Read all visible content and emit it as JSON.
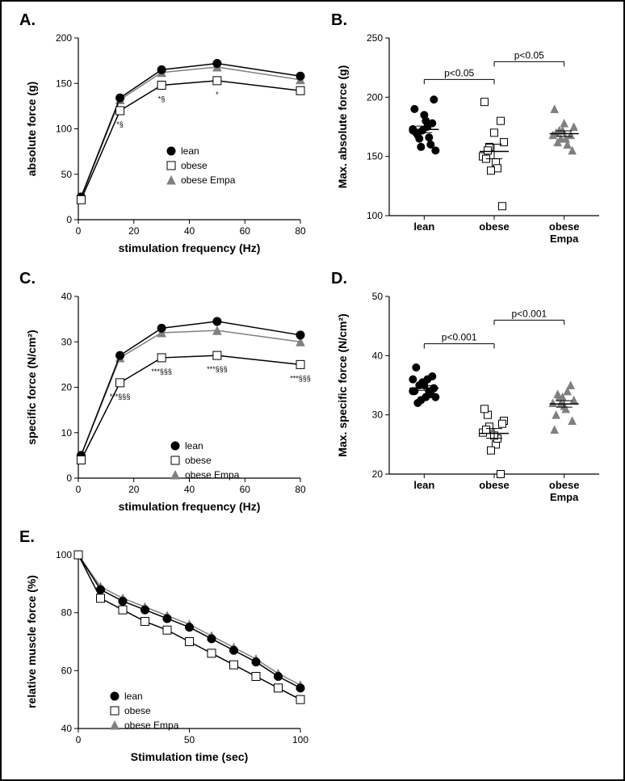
{
  "labels": {
    "A": "A.",
    "B": "B.",
    "C": "C.",
    "D": "D.",
    "E": "E."
  },
  "legend_items": [
    "lean",
    "obese",
    "obese Empa"
  ],
  "colors": {
    "lean": "#000000",
    "obese": "#000000",
    "obese_empa": "#808080",
    "axis": "#000000",
    "bg": "#ffffff"
  },
  "marker_size": 5,
  "line_width": 1.5,
  "axis_width": 1.2,
  "panelA": {
    "type": "line",
    "xlabel": "stimulation frequency (Hz)",
    "ylabel": "absolute force (g)",
    "xlim": [
      0,
      80
    ],
    "ylim": [
      0,
      200
    ],
    "xticks": [
      0,
      20,
      40,
      60,
      80
    ],
    "yticks": [
      0,
      50,
      100,
      150,
      200
    ],
    "x": [
      1,
      15,
      30,
      50,
      80
    ],
    "series": {
      "lean": [
        25,
        134,
        165,
        172,
        158
      ],
      "obese": [
        22,
        120,
        148,
        153,
        142
      ],
      "obese_empa": [
        24,
        132,
        162,
        168,
        154
      ]
    },
    "sig_at": [
      15,
      30,
      50
    ],
    "sig_labels": [
      "*§",
      "*§",
      "*"
    ]
  },
  "panelB": {
    "type": "scatter",
    "ylabel": "Max. absolute force (g)",
    "ylim": [
      100,
      250
    ],
    "yticks": [
      100,
      150,
      200,
      250
    ],
    "categories": [
      "lean",
      "obese",
      "obese Empa"
    ],
    "data": {
      "lean": [
        172,
        165,
        180,
        175,
        198,
        170,
        168,
        185,
        160,
        178,
        190,
        158,
        172,
        166,
        155,
        173
      ],
      "obese": [
        150,
        158,
        145,
        140,
        162,
        148,
        155,
        170,
        180,
        108,
        196,
        138
      ],
      "obese_empa": [
        168,
        172,
        165,
        160,
        175,
        170,
        162,
        178,
        168,
        155,
        190,
        165,
        172
      ]
    },
    "pvals": [
      {
        "from": 0,
        "to": 1,
        "text": "p<0.05",
        "y": 215
      },
      {
        "from": 1,
        "to": 2,
        "text": "p<0.05",
        "y": 230
      }
    ]
  },
  "panelC": {
    "type": "line",
    "xlabel": "stimulation frequency (Hz)",
    "ylabel": "specific force (N/cm²)",
    "xlim": [
      0,
      80
    ],
    "ylim": [
      0,
      40
    ],
    "xticks": [
      0,
      20,
      40,
      60,
      80
    ],
    "yticks": [
      0,
      10,
      20,
      30,
      40
    ],
    "x": [
      1,
      15,
      30,
      50,
      80
    ],
    "series": {
      "lean": [
        5,
        27,
        33,
        34.5,
        31.5
      ],
      "obese": [
        4,
        21,
        26.5,
        27,
        25
      ],
      "obese_empa": [
        5,
        26.5,
        32,
        32.5,
        30
      ]
    },
    "sig_at": [
      15,
      30,
      50,
      80
    ],
    "sig_labels": [
      "***§§§",
      "***§§§",
      "***§§§",
      "***§§§"
    ]
  },
  "panelD": {
    "type": "scatter",
    "ylabel": "Max. specific force (N/cm²)",
    "ylim": [
      20,
      50
    ],
    "yticks": [
      20,
      30,
      40,
      50
    ],
    "categories": [
      "lean",
      "obese",
      "obese Empa"
    ],
    "data": {
      "lean": [
        34,
        35,
        33,
        36,
        34.5,
        38,
        32,
        35,
        33.5,
        36.5,
        34,
        32.5,
        35.5,
        34,
        33,
        36
      ],
      "obese": [
        27,
        28,
        25,
        26,
        29,
        27.5,
        30,
        26.5,
        20,
        28.5,
        31,
        24
      ],
      "obese_empa": [
        32,
        33,
        31,
        34,
        32.5,
        30,
        33.5,
        31.5,
        35,
        29,
        27.5,
        32,
        33
      ]
    },
    "pvals": [
      {
        "from": 0,
        "to": 1,
        "text": "p<0.001",
        "y": 42
      },
      {
        "from": 1,
        "to": 2,
        "text": "p<0.001",
        "y": 46
      }
    ]
  },
  "panelE": {
    "type": "line",
    "xlabel": "Stimulation time (sec)",
    "ylabel": "relative muscle force (%)",
    "xlim": [
      0,
      100
    ],
    "ylim": [
      40,
      100
    ],
    "xticks": [
      0,
      50,
      100
    ],
    "yticks": [
      40,
      60,
      80,
      100
    ],
    "x": [
      0,
      10,
      20,
      30,
      40,
      50,
      60,
      70,
      80,
      90,
      100
    ],
    "series": {
      "lean": [
        100,
        88,
        84,
        81,
        78,
        75,
        71,
        67,
        63,
        58,
        54
      ],
      "obese": [
        100,
        85,
        81,
        77,
        74,
        70,
        66,
        62,
        58,
        54,
        50
      ],
      "obese_empa": [
        100,
        89,
        85,
        82,
        79,
        76,
        72,
        68,
        64,
        59,
        55
      ]
    }
  }
}
